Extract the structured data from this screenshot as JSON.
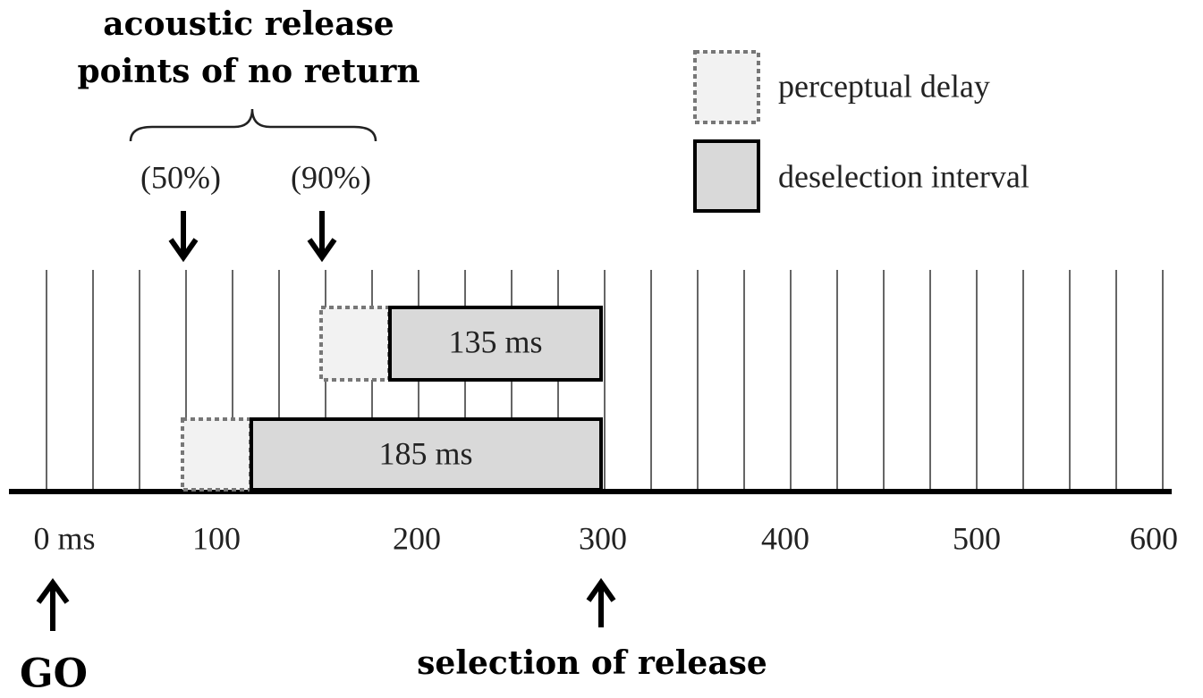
{
  "heading": [
    "acoustic release",
    "points of no return"
  ],
  "markers": [
    "(50%)",
    "(90%)"
  ],
  "legend": [
    "perceptual delay",
    "deselection interval"
  ],
  "bars": [
    "135 ms",
    "185 ms"
  ],
  "axis_labels": [
    "0 ms",
    "100",
    "200",
    "300",
    "400",
    "500",
    "600"
  ],
  "go": "GO",
  "selection": "selection of release"
}
